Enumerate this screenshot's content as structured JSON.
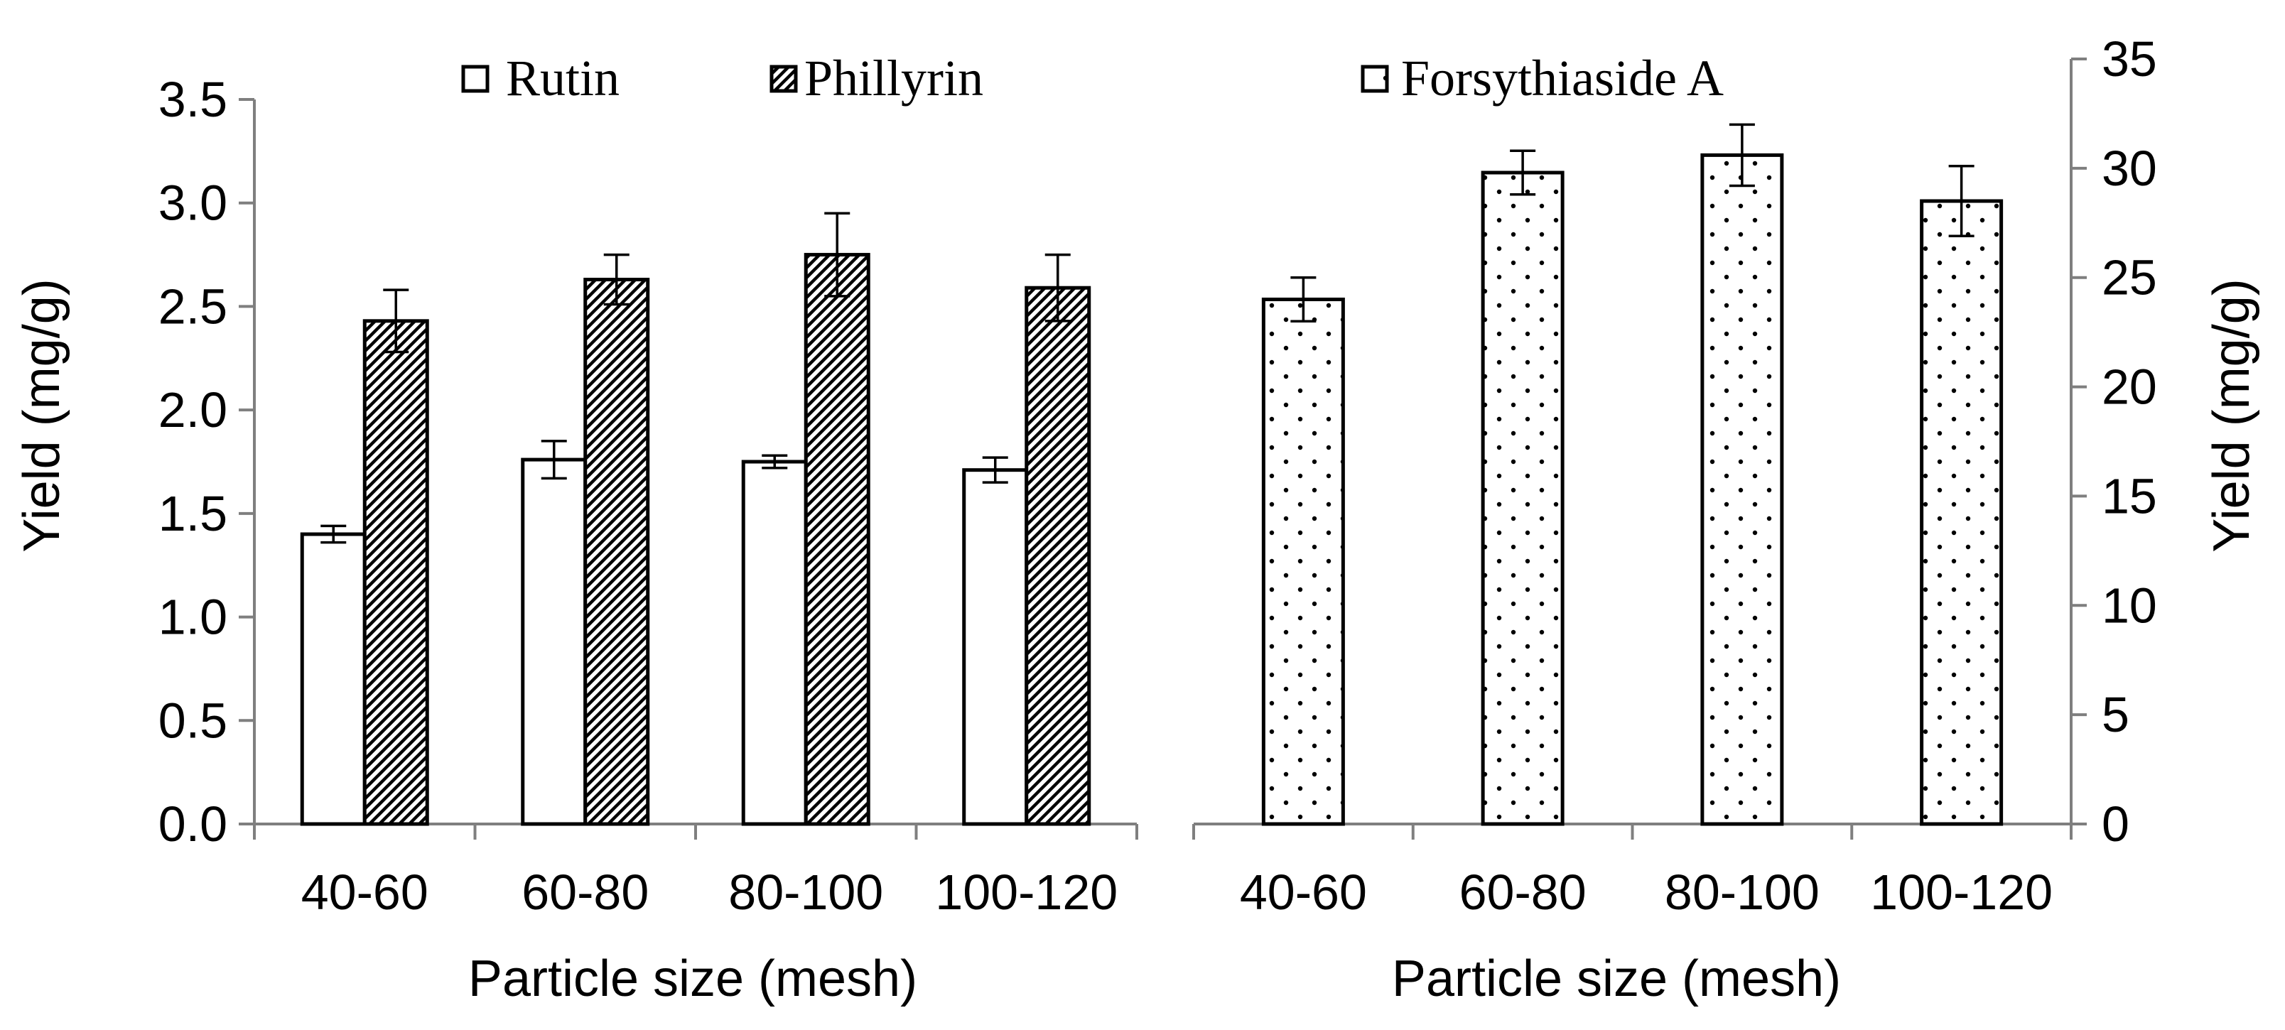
{
  "chart_data": [
    {
      "type": "bar",
      "categories": [
        "40-60",
        "60-80",
        "80-100",
        "100-120"
      ],
      "series": [
        {
          "name": "Rutin",
          "pattern": "none",
          "values": [
            1.4,
            1.76,
            1.75,
            1.71
          ],
          "errors": [
            0.04,
            0.09,
            0.03,
            0.06
          ]
        },
        {
          "name": "Phillyrin",
          "pattern": "diagonal",
          "values": [
            2.43,
            2.63,
            2.75,
            2.59
          ],
          "errors": [
            0.15,
            0.12,
            0.2,
            0.16
          ]
        }
      ],
      "xlabel": "Particle size (mesh)",
      "ylabel": "Yield (mg/g)",
      "ylim": [
        0,
        3.5
      ],
      "yticks": [
        "0.0",
        "0.5",
        "1.0",
        "1.5",
        "2.0",
        "2.5",
        "3.0",
        "3.5"
      ],
      "grid": false,
      "legend": "top"
    },
    {
      "type": "bar",
      "categories": [
        "40-60",
        "60-80",
        "80-100",
        "100-120"
      ],
      "series": [
        {
          "name": "Forsythiaside A",
          "pattern": "dots",
          "values": [
            24.0,
            29.8,
            30.6,
            28.5
          ],
          "errors": [
            1.0,
            1.0,
            1.4,
            1.6
          ]
        }
      ],
      "xlabel": "Particle size (mesh)",
      "ylabel": "Yield (mg/g)",
      "ylim": [
        0,
        35
      ],
      "yticks": [
        "0",
        "5",
        "10",
        "15",
        "20",
        "25",
        "30",
        "35"
      ],
      "grid": false,
      "legend": "top"
    }
  ]
}
